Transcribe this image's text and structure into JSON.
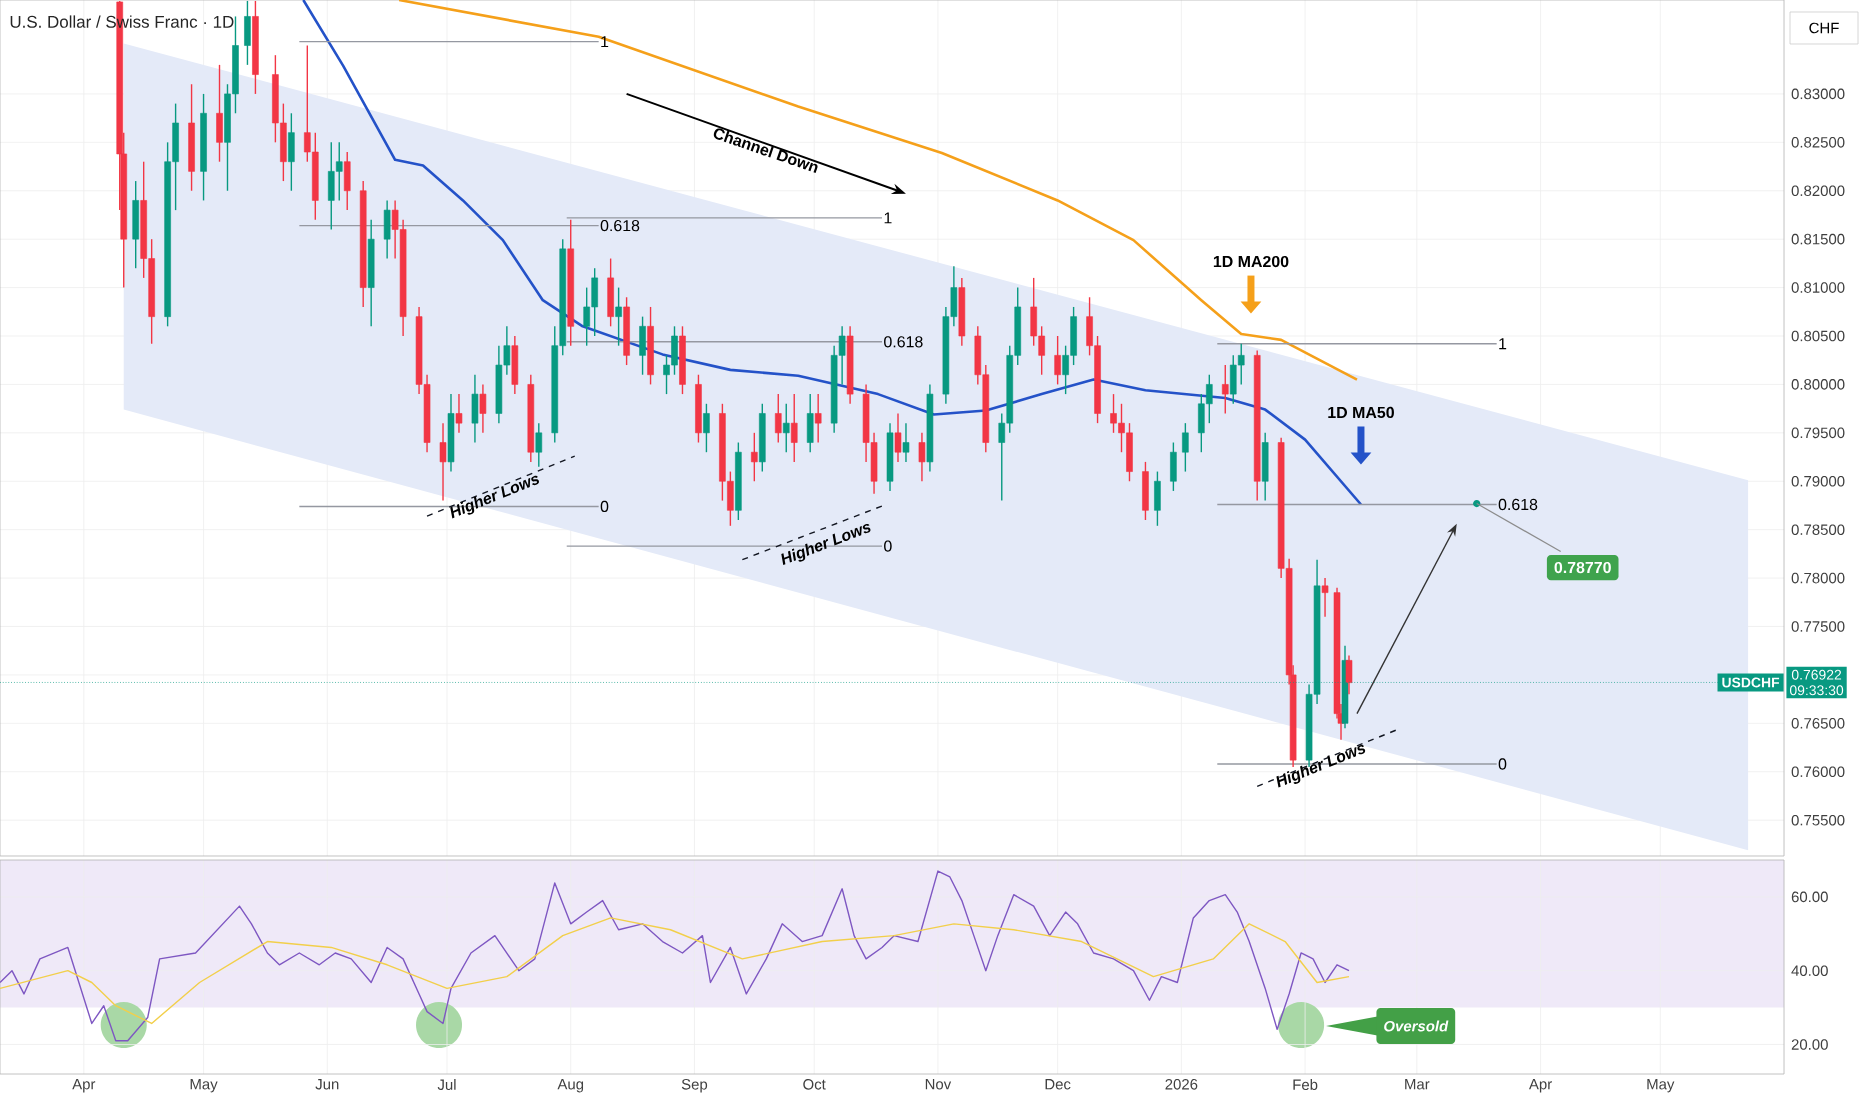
{
  "chart_data": [
    {
      "type": "candlestick",
      "title": "U.S. Dollar / Swiss Franc · 1D",
      "ylabel": "CHF",
      "grid": true,
      "tick_labels": "y",
      "xlim": [
        "2025-03-11",
        "2026-06-01"
      ],
      "ylim": [
        0.7513,
        0.8397
      ],
      "xticks": [
        {
          "value": "2025-04-01",
          "label": null
        },
        {
          "value": "2025-05-01",
          "label": null
        },
        {
          "value": "2025-06-01",
          "label": null
        },
        {
          "value": "2025-07-01",
          "label": null
        },
        {
          "value": "2025-08-01",
          "label": null
        },
        {
          "value": "2025-09-01",
          "label": null
        },
        {
          "value": "2025-10-01",
          "label": null
        },
        {
          "value": "2025-11-01",
          "label": null
        },
        {
          "value": "2025-12-01",
          "label": null
        },
        {
          "value": "2026-01-01",
          "label": null
        },
        {
          "value": "2026-02-01",
          "label": null
        },
        {
          "value": "2026-03-01",
          "label": null
        },
        {
          "value": "2026-04-01",
          "label": null
        },
        {
          "value": "2026-05-01",
          "label": null
        }
      ],
      "yticks": [
        {
          "value": 0.755,
          "label": "0.75500"
        },
        {
          "value": 0.76,
          "label": "0.76000"
        },
        {
          "value": 0.765,
          "label": "0.76500"
        },
        {
          "value": 0.77,
          "label": null
        },
        {
          "value": 0.775,
          "label": "0.77500"
        },
        {
          "value": 0.78,
          "label": "0.78000"
        },
        {
          "value": 0.785,
          "label": "0.78500"
        },
        {
          "value": 0.79,
          "label": "0.79000"
        },
        {
          "value": 0.795,
          "label": "0.79500"
        },
        {
          "value": 0.8,
          "label": "0.80000"
        },
        {
          "value": 0.805,
          "label": "0.80500"
        },
        {
          "value": 0.81,
          "label": "0.81000"
        },
        {
          "value": 0.815,
          "label": "0.81500"
        },
        {
          "value": 0.82,
          "label": "0.82000"
        },
        {
          "value": 0.825,
          "label": "0.82500"
        },
        {
          "value": 0.83,
          "label": "0.83000"
        }
      ],
      "x": [
        "2025-04-10",
        "2025-04-11",
        "2025-04-14",
        "2025-04-16",
        "2025-04-18",
        "2025-04-22",
        "2025-04-24",
        "2025-04-28",
        "2025-05-01",
        "2025-05-05",
        "2025-05-07",
        "2025-05-09",
        "2025-05-12",
        "2025-05-14",
        "2025-05-19",
        "2025-05-21",
        "2025-05-23",
        "2025-05-27",
        "2025-05-29",
        "2025-06-02",
        "2025-06-04",
        "2025-06-06",
        "2025-06-10",
        "2025-06-12",
        "2025-06-16",
        "2025-06-18",
        "2025-06-20",
        "2025-06-24",
        "2025-06-26",
        "2025-06-30",
        "2025-07-02",
        "2025-07-04",
        "2025-07-08",
        "2025-07-10",
        "2025-07-14",
        "2025-07-16",
        "2025-07-18",
        "2025-07-22",
        "2025-07-24",
        "2025-07-28",
        "2025-07-30",
        "2025-08-01",
        "2025-08-05",
        "2025-08-07",
        "2025-08-11",
        "2025-08-13",
        "2025-08-15",
        "2025-08-19",
        "2025-08-21",
        "2025-08-25",
        "2025-08-27",
        "2025-08-29",
        "2025-09-02",
        "2025-09-04",
        "2025-09-08",
        "2025-09-10",
        "2025-09-12",
        "2025-09-16",
        "2025-09-18",
        "2025-09-22",
        "2025-09-24",
        "2025-09-26",
        "2025-09-30",
        "2025-10-02",
        "2025-10-06",
        "2025-10-08",
        "2025-10-10",
        "2025-10-14",
        "2025-10-16",
        "2025-10-20",
        "2025-10-22",
        "2025-10-24",
        "2025-10-28",
        "2025-10-30",
        "2025-11-03",
        "2025-11-05",
        "2025-11-07",
        "2025-11-11",
        "2025-11-13",
        "2025-11-17",
        "2025-11-19",
        "2025-11-21",
        "2025-11-25",
        "2025-11-27",
        "2025-12-01",
        "2025-12-03",
        "2025-12-05",
        "2025-12-09",
        "2025-12-11",
        "2025-12-15",
        "2025-12-17",
        "2025-12-19",
        "2025-12-23",
        "2025-12-26",
        "2025-12-30",
        "2026-01-02",
        "2026-01-06",
        "2026-01-08",
        "2026-01-12",
        "2026-01-14",
        "2026-01-16",
        "2026-01-20",
        "2026-01-22",
        "2026-01-26",
        "2026-01-28",
        "2026-01-29",
        "2026-02-02",
        "2026-02-04",
        "2026-02-06",
        "2026-02-09",
        "2026-02-10",
        "2026-02-11",
        "2026-02-12"
      ],
      "ohlc": [
        [
          0.8395,
          0.8396,
          0.818,
          0.8238
        ],
        [
          0.8238,
          0.826,
          0.81,
          0.815
        ],
        [
          0.815,
          0.821,
          0.812,
          0.819
        ],
        [
          0.819,
          0.823,
          0.811,
          0.813
        ],
        [
          0.813,
          0.815,
          0.8042,
          0.807
        ],
        [
          0.807,
          0.825,
          0.806,
          0.823
        ],
        [
          0.823,
          0.829,
          0.818,
          0.827
        ],
        [
          0.827,
          0.831,
          0.82,
          0.822
        ],
        [
          0.822,
          0.83,
          0.819,
          0.828
        ],
        [
          0.828,
          0.833,
          0.823,
          0.825
        ],
        [
          0.825,
          0.831,
          0.82,
          0.83
        ],
        [
          0.83,
          0.838,
          0.828,
          0.835
        ],
        [
          0.835,
          0.8396,
          0.833,
          0.838
        ],
        [
          0.838,
          0.8396,
          0.83,
          0.832
        ],
        [
          0.832,
          0.834,
          0.825,
          0.827
        ],
        [
          0.827,
          0.829,
          0.821,
          0.823
        ],
        [
          0.823,
          0.828,
          0.82,
          0.826
        ],
        [
          0.826,
          0.835,
          0.823,
          0.824
        ],
        [
          0.824,
          0.826,
          0.817,
          0.819
        ],
        [
          0.819,
          0.825,
          0.816,
          0.822
        ],
        [
          0.822,
          0.825,
          0.819,
          0.823
        ],
        [
          0.823,
          0.824,
          0.818,
          0.82
        ],
        [
          0.82,
          0.821,
          0.808,
          0.81
        ],
        [
          0.81,
          0.817,
          0.806,
          0.815
        ],
        [
          0.815,
          0.819,
          0.813,
          0.818
        ],
        [
          0.818,
          0.819,
          0.813,
          0.816
        ],
        [
          0.816,
          0.817,
          0.805,
          0.807
        ],
        [
          0.807,
          0.808,
          0.799,
          0.8
        ],
        [
          0.8,
          0.801,
          0.793,
          0.794
        ],
        [
          0.794,
          0.796,
          0.788,
          0.792
        ],
        [
          0.792,
          0.799,
          0.791,
          0.797
        ],
        [
          0.797,
          0.799,
          0.795,
          0.796
        ],
        [
          0.796,
          0.801,
          0.794,
          0.799
        ],
        [
          0.799,
          0.8,
          0.795,
          0.797
        ],
        [
          0.797,
          0.804,
          0.796,
          0.802
        ],
        [
          0.802,
          0.806,
          0.801,
          0.804
        ],
        [
          0.804,
          0.805,
          0.799,
          0.8
        ],
        [
          0.8,
          0.801,
          0.792,
          0.793
        ],
        [
          0.793,
          0.796,
          0.7915,
          0.795
        ],
        [
          0.795,
          0.806,
          0.794,
          0.804
        ],
        [
          0.804,
          0.815,
          0.803,
          0.814
        ],
        [
          0.814,
          0.817,
          0.804,
          0.806
        ],
        [
          0.806,
          0.81,
          0.804,
          0.808
        ],
        [
          0.808,
          0.812,
          0.805,
          0.811
        ],
        [
          0.811,
          0.813,
          0.806,
          0.807
        ],
        [
          0.807,
          0.81,
          0.804,
          0.808
        ],
        [
          0.808,
          0.809,
          0.802,
          0.803
        ],
        [
          0.803,
          0.807,
          0.801,
          0.806
        ],
        [
          0.806,
          0.808,
          0.8,
          0.801
        ],
        [
          0.801,
          0.803,
          0.799,
          0.802
        ],
        [
          0.802,
          0.806,
          0.801,
          0.805
        ],
        [
          0.805,
          0.806,
          0.799,
          0.8
        ],
        [
          0.8,
          0.801,
          0.794,
          0.795
        ],
        [
          0.795,
          0.798,
          0.793,
          0.797
        ],
        [
          0.797,
          0.798,
          0.788,
          0.79
        ],
        [
          0.79,
          0.791,
          0.7854,
          0.787
        ],
        [
          0.787,
          0.794,
          0.786,
          0.793
        ],
        [
          0.793,
          0.795,
          0.79,
          0.792
        ],
        [
          0.792,
          0.798,
          0.791,
          0.797
        ],
        [
          0.797,
          0.799,
          0.794,
          0.795
        ],
        [
          0.795,
          0.798,
          0.793,
          0.796
        ],
        [
          0.796,
          0.799,
          0.792,
          0.794
        ],
        [
          0.794,
          0.799,
          0.793,
          0.797
        ],
        [
          0.797,
          0.799,
          0.794,
          0.796
        ],
        [
          0.796,
          0.804,
          0.795,
          0.803
        ],
        [
          0.803,
          0.806,
          0.8,
          0.805
        ],
        [
          0.805,
          0.806,
          0.798,
          0.799
        ],
        [
          0.799,
          0.8,
          0.792,
          0.794
        ],
        [
          0.794,
          0.795,
          0.7887,
          0.79
        ],
        [
          0.79,
          0.796,
          0.789,
          0.795
        ],
        [
          0.795,
          0.797,
          0.792,
          0.793
        ],
        [
          0.793,
          0.796,
          0.792,
          0.794
        ],
        [
          0.794,
          0.795,
          0.79,
          0.792
        ],
        [
          0.792,
          0.8,
          0.791,
          0.799
        ],
        [
          0.799,
          0.808,
          0.798,
          0.807
        ],
        [
          0.807,
          0.8122,
          0.806,
          0.81
        ],
        [
          0.81,
          0.811,
          0.804,
          0.805
        ],
        [
          0.805,
          0.806,
          0.8,
          0.801
        ],
        [
          0.801,
          0.802,
          0.793,
          0.794
        ],
        [
          0.794,
          0.797,
          0.788,
          0.796
        ],
        [
          0.796,
          0.804,
          0.795,
          0.803
        ],
        [
          0.803,
          0.81,
          0.802,
          0.808
        ],
        [
          0.808,
          0.811,
          0.804,
          0.805
        ],
        [
          0.805,
          0.806,
          0.801,
          0.803
        ],
        [
          0.803,
          0.805,
          0.8,
          0.801
        ],
        [
          0.801,
          0.804,
          0.799,
          0.803
        ],
        [
          0.803,
          0.808,
          0.802,
          0.807
        ],
        [
          0.807,
          0.809,
          0.803,
          0.804
        ],
        [
          0.804,
          0.805,
          0.796,
          0.797
        ],
        [
          0.797,
          0.799,
          0.795,
          0.796
        ],
        [
          0.796,
          0.798,
          0.793,
          0.795
        ],
        [
          0.795,
          0.796,
          0.79,
          0.791
        ],
        [
          0.791,
          0.792,
          0.786,
          0.787
        ],
        [
          0.787,
          0.791,
          0.7854,
          0.79
        ],
        [
          0.79,
          0.794,
          0.789,
          0.793
        ],
        [
          0.793,
          0.796,
          0.791,
          0.795
        ],
        [
          0.795,
          0.799,
          0.793,
          0.798
        ],
        [
          0.798,
          0.801,
          0.796,
          0.8
        ],
        [
          0.8,
          0.802,
          0.797,
          0.799
        ],
        [
          0.799,
          0.803,
          0.798,
          0.802
        ],
        [
          0.802,
          0.8042,
          0.8,
          0.803
        ],
        [
          0.803,
          0.8035,
          0.788,
          0.79
        ],
        [
          0.79,
          0.795,
          0.788,
          0.794
        ],
        [
          0.794,
          0.7945,
          0.78,
          0.781
        ],
        [
          0.781,
          0.782,
          0.769,
          0.77
        ],
        [
          0.77,
          0.771,
          0.7605,
          0.7612
        ],
        [
          0.7612,
          0.769,
          0.7605,
          0.768
        ],
        [
          0.768,
          0.7819,
          0.767,
          0.7792
        ],
        [
          0.7792,
          0.78,
          0.776,
          0.7785
        ],
        [
          0.7785,
          0.779,
          0.7655,
          0.766
        ],
        [
          0.766,
          0.767,
          0.7633,
          0.765
        ],
        [
          0.765,
          0.773,
          0.7645,
          0.7715
        ],
        [
          0.7715,
          0.772,
          0.768,
          0.7692
        ]
      ],
      "series": [
        {
          "type": "area",
          "color": "#e4eaf8",
          "x": [
            "2025-04-11",
            "2026-05-23"
          ],
          "values": [
            null,
            null
          ],
          "upper": [
            0.8352,
            0.7901
          ],
          "lower": [
            0.7974,
            0.7519
          ]
        },
        {
          "name": "1D MA200",
          "type": "line",
          "color": "#f5a01a",
          "x": [
            "2025-06-19",
            "2025-08-08",
            "2025-09-27",
            "2025-11-02",
            "2025-12-01",
            "2025-12-20",
            "2026-01-06",
            "2026-01-16",
            "2026-01-26",
            "2026-02-14"
          ],
          "values": [
            0.8397,
            0.8359,
            0.8287,
            0.8239,
            0.819,
            0.8149,
            0.8087,
            0.8052,
            0.8046,
            0.8005
          ]
        },
        {
          "name": "1D MA50",
          "type": "line",
          "color": "#2452c8",
          "x": [
            "2025-05-26",
            "2025-06-05",
            "2025-06-18",
            "2025-06-25",
            "2025-07-05",
            "2025-07-15",
            "2025-07-25",
            "2025-08-04",
            "2025-08-24",
            "2025-09-10",
            "2025-09-27",
            "2025-10-17",
            "2025-10-31",
            "2025-11-13",
            "2025-11-27",
            "2025-12-10",
            "2025-12-23",
            "2026-01-12",
            "2026-01-22",
            "2026-02-01",
            "2026-02-15"
          ],
          "values": [
            0.8397,
            0.8329,
            0.8232,
            0.8226,
            0.819,
            0.8149,
            0.8087,
            0.806,
            0.8031,
            0.8015,
            0.8009,
            0.799,
            0.7969,
            0.7973,
            0.799,
            0.8005,
            0.7994,
            0.7986,
            0.7974,
            0.7943,
            0.7876
          ]
        },
        {
          "type": "line",
          "color": "#9598a1",
          "x": [
            "2025-05-25",
            "2025-08-08"
          ],
          "values": [
            0.8354,
            0.8354
          ]
        },
        {
          "type": "line",
          "color": "#9598a1",
          "x": [
            "2025-05-25",
            "2025-08-08"
          ],
          "values": [
            0.8164,
            0.8164
          ]
        },
        {
          "type": "line",
          "color": "#9598a1",
          "x": [
            "2025-05-25",
            "2025-08-08"
          ],
          "values": [
            0.7874,
            0.7874
          ]
        },
        {
          "type": "line",
          "color": "#9598a1",
          "x": [
            "2025-07-31",
            "2025-10-18"
          ],
          "values": [
            0.8172,
            0.8172
          ]
        },
        {
          "type": "line",
          "color": "#9598a1",
          "x": [
            "2025-07-31",
            "2025-10-18"
          ],
          "values": [
            0.8044,
            0.8044
          ]
        },
        {
          "type": "line",
          "color": "#9598a1",
          "x": [
            "2025-07-31",
            "2025-10-18"
          ],
          "values": [
            0.7833,
            0.7833
          ]
        },
        {
          "type": "line",
          "color": "#9598a1",
          "x": [
            "2026-01-10",
            "2026-03-21"
          ],
          "values": [
            0.8042,
            0.8042
          ]
        },
        {
          "type": "line",
          "color": "#9598a1",
          "x": [
            "2026-01-10",
            "2026-03-21"
          ],
          "values": [
            0.7876,
            0.7876
          ]
        },
        {
          "type": "line",
          "color": "#9598a1",
          "x": [
            "2026-01-10",
            "2026-03-21"
          ],
          "values": [
            0.7608,
            0.7608
          ]
        },
        {
          "type": "line",
          "color": "#131722",
          "line_style": "dashed",
          "x": [
            "2025-06-26",
            "2025-08-02"
          ],
          "values": [
            0.7864,
            0.7926
          ]
        },
        {
          "type": "line",
          "color": "#131722",
          "line_style": "dashed",
          "x": [
            "2025-09-13",
            "2025-10-19"
          ],
          "values": [
            0.7819,
            0.7876
          ]
        },
        {
          "type": "line",
          "color": "#131722",
          "line_style": "dashed",
          "x": [
            "2026-01-20",
            "2026-02-25"
          ],
          "values": [
            0.7585,
            0.7645
          ]
        }
      ],
      "ref_lines": [
        {
          "axis": "y",
          "value": 0.76922,
          "label": "USDCHF",
          "color": "#089981"
        }
      ],
      "annotations": [
        "Channel Down",
        {
          "text": "1",
          "x": "2025-08-08",
          "y": 0.8354
        },
        {
          "text": "0.618",
          "x": "2025-08-08",
          "y": 0.8164
        },
        {
          "text": "0",
          "x": "2025-08-08",
          "y": 0.7874
        },
        {
          "text": "1",
          "x": "2025-10-18",
          "y": 0.8172
        },
        {
          "text": "0.618",
          "x": "2025-10-18",
          "y": 0.8044
        },
        {
          "text": "0",
          "x": "2025-10-18",
          "y": 0.7833
        },
        {
          "text": "1",
          "x": "2026-03-21",
          "y": 0.8042
        },
        {
          "text": "0.618",
          "x": "2026-03-21",
          "y": 0.7876
        },
        {
          "text": "0",
          "x": "2026-03-21",
          "y": 0.7608
        },
        {
          "text": "Higher Lows",
          "x": "2025-07-13",
          "y": 0.7884
        },
        {
          "text": "Higher Lows",
          "x": "2025-10-04",
          "y": 0.7835
        },
        {
          "text": "Higher Lows",
          "x": "2026-02-05",
          "y": 0.7606
        },
        {
          "text": "0.78770",
          "x": "2026-03-16",
          "y": 0.7877
        },
        "0.76922",
        "09:33:30"
      ]
    },
    {
      "type": "line",
      "grid": true,
      "xlim": [
        "2025-03-11",
        "2026-06-01"
      ],
      "ylim": [
        12,
        70
      ],
      "xticks": [
        {
          "value": "2025-04-01",
          "label": "Apr"
        },
        {
          "value": "2025-05-01",
          "label": "May"
        },
        {
          "value": "2025-06-01",
          "label": "Jun"
        },
        {
          "value": "2025-07-01",
          "label": "Jul"
        },
        {
          "value": "2025-08-01",
          "label": "Aug"
        },
        {
          "value": "2025-09-01",
          "label": "Sep"
        },
        {
          "value": "2025-10-01",
          "label": "Oct"
        },
        {
          "value": "2025-11-01",
          "label": "Nov"
        },
        {
          "value": "2025-12-01",
          "label": "Dec"
        },
        {
          "value": "2026-01-01",
          "label": "2026"
        },
        {
          "value": "2026-02-01",
          "label": "Feb"
        },
        {
          "value": "2026-03-01",
          "label": "Mar"
        },
        {
          "value": "2026-04-01",
          "label": "Apr"
        },
        {
          "value": "2026-05-01",
          "label": "May"
        }
      ],
      "yticks": [
        {
          "value": 20,
          "label": "20.00"
        },
        {
          "value": 40,
          "label": "40.00"
        },
        {
          "value": 60,
          "label": "60.00"
        }
      ],
      "bands": [
        {
          "axis": "y",
          "from": 30,
          "to": 70,
          "color": "#efe9f8"
        }
      ],
      "series": [
        {
          "type": "scatter",
          "color": "#a9d8a6",
          "marker": "circle",
          "x": [
            "2025-04-11",
            "2025-06-29",
            "2026-01-31"
          ],
          "values": [
            25.3,
            25.3,
            25.3
          ]
        },
        {
          "type": "line",
          "color": "#7e57c2",
          "x": [
            "2025-03-11",
            "2025-03-14",
            "2025-03-17",
            "2025-03-21",
            "2025-03-28",
            "2025-04-03",
            "2025-04-06",
            "2025-04-09",
            "2025-04-12",
            "2025-04-17",
            "2025-04-20",
            "2025-04-29",
            "2025-05-10",
            "2025-05-13",
            "2025-05-17",
            "2025-05-20",
            "2025-05-25",
            "2025-05-30",
            "2025-06-03",
            "2025-06-07",
            "2025-06-12",
            "2025-06-16",
            "2025-06-20",
            "2025-06-24",
            "2025-06-26",
            "2025-06-30",
            "2025-07-02",
            "2025-07-07",
            "2025-07-13",
            "2025-07-19",
            "2025-07-23",
            "2025-07-28",
            "2025-08-01",
            "2025-08-05",
            "2025-08-09",
            "2025-08-13",
            "2025-08-19",
            "2025-08-24",
            "2025-08-29",
            "2025-09-03",
            "2025-09-05",
            "2025-09-10",
            "2025-09-14",
            "2025-09-19",
            "2025-09-23",
            "2025-09-28",
            "2025-10-03",
            "2025-10-08",
            "2025-10-11",
            "2025-10-14",
            "2025-10-18",
            "2025-10-21",
            "2025-10-27",
            "2025-11-01",
            "2025-11-04",
            "2025-11-07",
            "2025-11-10",
            "2025-11-13",
            "2025-11-16",
            "2025-11-20",
            "2025-11-25",
            "2025-11-29",
            "2025-12-03",
            "2025-12-06",
            "2025-12-10",
            "2025-12-15",
            "2025-12-20",
            "2025-12-24",
            "2025-12-27",
            "2025-12-31",
            "2026-01-04",
            "2026-01-08",
            "2026-01-12",
            "2026-01-15",
            "2026-01-18",
            "2026-01-22",
            "2026-01-25",
            "2026-01-28",
            "2026-01-31",
            "2026-02-03",
            "2026-02-06",
            "2026-02-09",
            "2026-02-12"
          ],
          "values": [
            36.8,
            40,
            33.7,
            43.2,
            46.3,
            25.7,
            30.5,
            21,
            21,
            27.3,
            43.2,
            44.8,
            57.5,
            52.7,
            44.8,
            41.6,
            44.8,
            41.6,
            44.8,
            43.2,
            36.8,
            46.3,
            43.2,
            33.7,
            28.9,
            25.7,
            35.2,
            44.8,
            49.5,
            40,
            43.2,
            63.8,
            52.7,
            55.9,
            59,
            51.1,
            52.7,
            47.9,
            44.8,
            49.5,
            36.8,
            46.3,
            33.7,
            43.2,
            52.7,
            47.9,
            49.5,
            62.2,
            49.5,
            43.2,
            46.3,
            49.5,
            47.9,
            67,
            65.4,
            59,
            49.5,
            40,
            49.5,
            60.6,
            57.5,
            49.5,
            55.9,
            52.7,
            44.8,
            43.2,
            40,
            32,
            38.4,
            36.8,
            54.3,
            59,
            60.6,
            55.9,
            47.9,
            35.2,
            24.1,
            33.7,
            44.8,
            43.2,
            36.8,
            41.6,
            40
          ]
        },
        {
          "type": "line",
          "color": "#f2cf4a",
          "x": [
            "2025-03-11",
            "2025-03-28",
            "2025-04-03",
            "2025-04-09",
            "2025-04-18",
            "2025-04-30",
            "2025-05-17",
            "2025-06-02",
            "2025-06-16",
            "2025-07-01",
            "2025-07-16",
            "2025-07-30",
            "2025-08-11",
            "2025-08-26",
            "2025-09-13",
            "2025-10-03",
            "2025-10-21",
            "2025-11-05",
            "2025-11-20",
            "2025-12-07",
            "2025-12-25",
            "2026-01-09",
            "2026-01-18",
            "2026-01-27",
            "2026-02-04",
            "2026-02-12"
          ],
          "values": [
            35.2,
            40,
            36.8,
            30.5,
            25.7,
            36.8,
            47.9,
            46.3,
            41.6,
            35.2,
            38.4,
            49.5,
            54.3,
            51.1,
            43.2,
            47.9,
            49.5,
            52.7,
            51.1,
            47.9,
            38.4,
            43.2,
            52.7,
            47.9,
            36.8,
            38.4
          ]
        }
      ],
      "annotations": [
        "Oversold"
      ]
    }
  ]
}
